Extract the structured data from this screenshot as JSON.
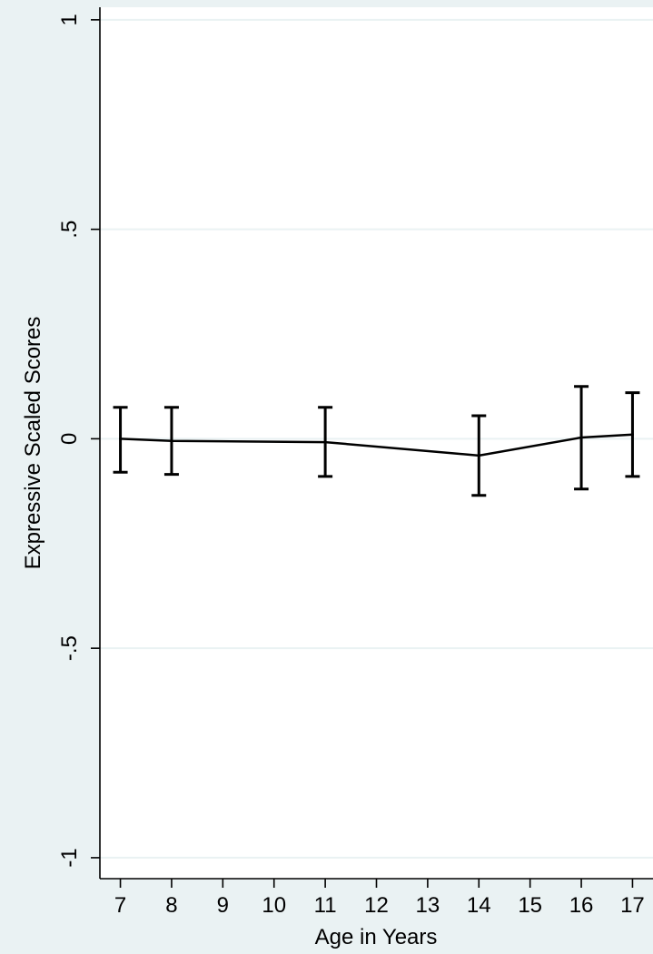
{
  "chart_data": {
    "type": "line",
    "title": "",
    "xlabel": "Age in Years",
    "ylabel": "Expressive Scaled Scores",
    "xlim": [
      6.6,
      17.4
    ],
    "ylim": [
      -1.05,
      1.03
    ],
    "x_ticks": [
      7,
      8,
      9,
      10,
      11,
      12,
      13,
      14,
      15,
      16,
      17
    ],
    "x_tick_labels": [
      "7",
      "8",
      "9",
      "10",
      "11",
      "12",
      "13",
      "14",
      "15",
      "16",
      "17"
    ],
    "y_ticks": [
      -1,
      -0.5,
      0,
      0.5,
      1
    ],
    "y_tick_labels": [
      "-1",
      "-.5",
      "0",
      ".5",
      "1"
    ],
    "grid": true,
    "series": [
      {
        "x": [
          7,
          8,
          11,
          14,
          16,
          17
        ],
        "y": [
          0.0,
          -0.005,
          -0.008,
          -0.04,
          0.003,
          0.01
        ],
        "err_low": [
          -0.08,
          -0.085,
          -0.09,
          -0.135,
          -0.12,
          -0.09
        ],
        "err_high": [
          0.075,
          0.075,
          0.075,
          0.055,
          0.125,
          0.11
        ]
      }
    ],
    "colors": {
      "background": "#eaf2f3",
      "plot_area": "#ffffff",
      "grid": "#eaf2f3",
      "line": "#000000"
    }
  }
}
